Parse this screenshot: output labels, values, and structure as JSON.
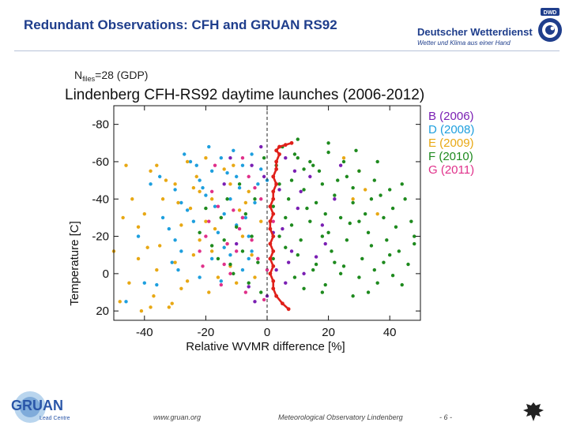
{
  "slide": {
    "title": "Redundant Observations: CFH and GRUAN RS92"
  },
  "header": {
    "org_name": "Deutscher Wetterdienst",
    "org_tagline": "Wetter und Klima aus einer Hand",
    "badge_text": "DWD"
  },
  "footer": {
    "logo_text": "GRUAN",
    "logo_subtext": "Lead Centre",
    "url": "www.gruan.org",
    "institution": "Meteorological Observatory Lindenberg",
    "page_number": "- 6 -"
  },
  "chart_data": {
    "type": "scatter",
    "title": "Lindenberg CFH-RS92 daytime launches (2006-2012)",
    "note_prefix": "N",
    "note_subscript": "files",
    "note_suffix": "=28  (GDP)",
    "xlabel": "Relative WVMR difference [%]",
    "ylabel": "Temperature [C]",
    "xlim": [
      -50,
      50
    ],
    "ylim": [
      25,
      -90
    ],
    "xticks": [
      -40,
      -20,
      0,
      20,
      40
    ],
    "yticks": [
      -80,
      -60,
      -40,
      -20,
      0,
      20
    ],
    "zero_line": "dashed",
    "legend_position": "top-right",
    "series": [
      {
        "name": "B (2006)",
        "color": "#7a1fb3",
        "points": [
          [
            2,
            -22
          ],
          [
            -3,
            -8
          ],
          [
            6,
            5
          ],
          [
            10,
            -35
          ],
          [
            -8,
            -30
          ],
          [
            14,
            -52
          ],
          [
            4,
            -45
          ],
          [
            -5,
            -58
          ],
          [
            18,
            -26
          ],
          [
            8,
            -12
          ],
          [
            0,
            12
          ],
          [
            -10,
            -16
          ],
          [
            12,
            0
          ],
          [
            -2,
            -68
          ],
          [
            6,
            -62
          ],
          [
            22,
            -40
          ],
          [
            -14,
            -48
          ],
          [
            3,
            -2
          ],
          [
            9,
            -55
          ],
          [
            16,
            -9
          ],
          [
            -6,
            7
          ],
          [
            1,
            -36
          ],
          [
            -12,
            -62
          ],
          [
            24,
            -58
          ],
          [
            5,
            -24
          ],
          [
            -4,
            15
          ],
          [
            11,
            -44
          ],
          [
            19,
            -16
          ],
          [
            -1,
            -52
          ],
          [
            7,
            -6
          ]
        ]
      },
      {
        "name": "D (2008)",
        "color": "#1e9fde",
        "points": [
          [
            -18,
            -55
          ],
          [
            -25,
            -60
          ],
          [
            -10,
            -52
          ],
          [
            -30,
            -45
          ],
          [
            -5,
            -64
          ],
          [
            -12,
            -40
          ],
          [
            -22,
            -50
          ],
          [
            -8,
            -58
          ],
          [
            -15,
            -62
          ],
          [
            -28,
            -38
          ],
          [
            -3,
            -48
          ],
          [
            -20,
            -42
          ],
          [
            -35,
            -52
          ],
          [
            -7,
            -30
          ],
          [
            -14,
            -32
          ],
          [
            -24,
            -28
          ],
          [
            -16,
            -22
          ],
          [
            -6,
            -20
          ],
          [
            -30,
            -18
          ],
          [
            -40,
            5
          ],
          [
            -36,
            6
          ],
          [
            -28,
            -12
          ],
          [
            -18,
            -8
          ],
          [
            -12,
            -10
          ],
          [
            -22,
            2
          ],
          [
            -8,
            -2
          ],
          [
            -46,
            15
          ],
          [
            -32,
            -24
          ],
          [
            -26,
            -34
          ],
          [
            -4,
            -38
          ],
          [
            -11,
            -66
          ],
          [
            -19,
            -68
          ],
          [
            -2,
            -56
          ],
          [
            -9,
            -46
          ],
          [
            -23,
            -58
          ],
          [
            -38,
            -48
          ],
          [
            -14,
            -14
          ],
          [
            -31,
            -6
          ],
          [
            -17,
            -36
          ],
          [
            -5,
            -12
          ],
          [
            0,
            -50
          ],
          [
            -13,
            -54
          ],
          [
            -27,
            -64
          ],
          [
            -21,
            -46
          ],
          [
            -10,
            -26
          ],
          [
            -34,
            -30
          ],
          [
            -6,
            -8
          ],
          [
            -15,
            4
          ],
          [
            -29,
            -2
          ],
          [
            -42,
            -20
          ]
        ]
      },
      {
        "name": "E (2009)",
        "color": "#e8a814",
        "points": [
          [
            -48,
            15
          ],
          [
            -38,
            18
          ],
          [
            -42,
            -8
          ],
          [
            -45,
            5
          ],
          [
            -36,
            -2
          ],
          [
            -40,
            -32
          ],
          [
            -34,
            -40
          ],
          [
            -46,
            -58
          ],
          [
            -38,
            -55
          ],
          [
            -30,
            -48
          ],
          [
            -42,
            -25
          ],
          [
            -35,
            -15
          ],
          [
            -28,
            8
          ],
          [
            -32,
            18
          ],
          [
            -25,
            -35
          ],
          [
            -20,
            -62
          ],
          [
            -26,
            -60
          ],
          [
            -18,
            -40
          ],
          [
            -22,
            -18
          ],
          [
            -15,
            -30
          ],
          [
            -12,
            -48
          ],
          [
            -28,
            -26
          ],
          [
            -8,
            -20
          ],
          [
            -10,
            5
          ],
          [
            -5,
            -10
          ],
          [
            -16,
            2
          ],
          [
            -24,
            -10
          ],
          [
            -44,
            -40
          ],
          [
            -50,
            -12
          ],
          [
            -36,
            -58
          ],
          [
            -20,
            -28
          ],
          [
            -30,
            -6
          ],
          [
            -14,
            -56
          ],
          [
            -6,
            -44
          ],
          [
            -18,
            -12
          ],
          [
            -26,
            4
          ],
          [
            -12,
            -4
          ],
          [
            -33,
            -50
          ],
          [
            -22,
            -44
          ],
          [
            -39,
            -14
          ],
          [
            -9,
            -34
          ],
          [
            -17,
            -24
          ],
          [
            -4,
            2
          ],
          [
            -2,
            -28
          ],
          [
            -29,
            -38
          ],
          [
            -47,
            -30
          ],
          [
            -11,
            -58
          ],
          [
            -24,
            -46
          ],
          [
            -37,
            12
          ],
          [
            -41,
            20
          ],
          [
            32,
            -45
          ],
          [
            28,
            -40
          ],
          [
            36,
            -32
          ],
          [
            30,
            -55
          ],
          [
            25,
            -62
          ],
          [
            -31,
            16
          ],
          [
            -19,
            10
          ],
          [
            -13,
            -16
          ],
          [
            -23,
            -52
          ],
          [
            -7,
            -38
          ]
        ]
      },
      {
        "name": "F (2010)",
        "color": "#1e8a1e",
        "points": [
          [
            5,
            -68
          ],
          [
            10,
            -62
          ],
          [
            15,
            -58
          ],
          [
            20,
            -65
          ],
          [
            25,
            -60
          ],
          [
            30,
            -55
          ],
          [
            35,
            -50
          ],
          [
            40,
            -45
          ],
          [
            45,
            -40
          ],
          [
            8,
            -50
          ],
          [
            12,
            -45
          ],
          [
            18,
            -48
          ],
          [
            22,
            -42
          ],
          [
            28,
            -38
          ],
          [
            32,
            -32
          ],
          [
            38,
            -30
          ],
          [
            42,
            -25
          ],
          [
            48,
            -20
          ],
          [
            6,
            -30
          ],
          [
            14,
            -28
          ],
          [
            20,
            -22
          ],
          [
            26,
            -18
          ],
          [
            34,
            -15
          ],
          [
            40,
            -10
          ],
          [
            46,
            -5
          ],
          [
            10,
            -10
          ],
          [
            16,
            -5
          ],
          [
            24,
            0
          ],
          [
            30,
            2
          ],
          [
            36,
            5
          ],
          [
            44,
            6
          ],
          [
            12,
            8
          ],
          [
            18,
            10
          ],
          [
            28,
            12
          ],
          [
            -5,
            -20
          ],
          [
            -10,
            -25
          ],
          [
            -15,
            -30
          ],
          [
            -8,
            -12
          ],
          [
            -12,
            -5
          ],
          [
            -18,
            -15
          ],
          [
            -22,
            -22
          ],
          [
            -4,
            -40
          ],
          [
            -6,
            5
          ],
          [
            -2,
            10
          ],
          [
            3,
            -58
          ],
          [
            9,
            -64
          ],
          [
            17,
            -55
          ],
          [
            23,
            -50
          ],
          [
            29,
            -66
          ],
          [
            37,
            -42
          ],
          [
            41,
            -35
          ],
          [
            47,
            -28
          ],
          [
            7,
            -40
          ],
          [
            13,
            -35
          ],
          [
            19,
            -32
          ],
          [
            27,
            -27
          ],
          [
            33,
            -22
          ],
          [
            39,
            -18
          ],
          [
            43,
            -12
          ],
          [
            4,
            -20
          ],
          [
            11,
            -18
          ],
          [
            21,
            -12
          ],
          [
            31,
            -8
          ],
          [
            15,
            -2
          ],
          [
            25,
            -4
          ],
          [
            35,
            -2
          ],
          [
            41,
            1
          ],
          [
            9,
            2
          ],
          [
            19,
            6
          ],
          [
            33,
            10
          ],
          [
            -3,
            -6
          ],
          [
            -7,
            -32
          ],
          [
            -13,
            -40
          ],
          [
            -16,
            -8
          ],
          [
            -20,
            -35
          ],
          [
            -9,
            -48
          ],
          [
            2,
            -36
          ],
          [
            8,
            -26
          ],
          [
            16,
            -38
          ],
          [
            24,
            -30
          ],
          [
            14,
            -60
          ],
          [
            26,
            -52
          ],
          [
            36,
            -60
          ],
          [
            44,
            -48
          ],
          [
            -1,
            -62
          ],
          [
            6,
            -14
          ],
          [
            22,
            -6
          ],
          [
            38,
            -6
          ],
          [
            48,
            -16
          ],
          [
            12,
            -56
          ],
          [
            28,
            -46
          ],
          [
            34,
            -40
          ],
          [
            20,
            -70
          ],
          [
            10,
            -72
          ],
          [
            4,
            -48
          ],
          [
            18,
            -20
          ],
          [
            30,
            -28
          ],
          [
            -11,
            0
          ],
          [
            -14,
            -18
          ],
          [
            2,
            -8
          ]
        ]
      },
      {
        "name": "G (2011)",
        "color": "#e0308a",
        "points": [
          [
            -14,
            -5
          ],
          [
            -10,
            -12
          ],
          [
            -20,
            -20
          ],
          [
            -8,
            -30
          ],
          [
            -5,
            -18
          ],
          [
            -16,
            -36
          ],
          [
            -3,
            -8
          ],
          [
            -12,
            0
          ],
          [
            -18,
            -44
          ],
          [
            -6,
            -52
          ],
          [
            -22,
            -12
          ],
          [
            -9,
            -24
          ],
          [
            0,
            -2
          ],
          [
            -2,
            -40
          ],
          [
            -15,
            6
          ],
          [
            -7,
            10
          ],
          [
            -11,
            -34
          ],
          [
            -19,
            -28
          ],
          [
            -4,
            -46
          ],
          [
            -13,
            -16
          ],
          [
            2,
            -28
          ],
          [
            -17,
            -58
          ],
          [
            -8,
            -62
          ],
          [
            -21,
            -4
          ],
          [
            -1,
            14
          ]
        ]
      }
    ],
    "mean_profile": {
      "color": "#e0201a",
      "points": [
        [
          8,
          -70
        ],
        [
          6,
          -69
        ],
        [
          4,
          -68
        ],
        [
          3,
          -66
        ],
        [
          4,
          -64
        ],
        [
          3,
          -60
        ],
        [
          3,
          -56
        ],
        [
          2,
          -52
        ],
        [
          3,
          -48
        ],
        [
          2,
          -44
        ],
        [
          2,
          -40
        ],
        [
          1,
          -36
        ],
        [
          2,
          -32
        ],
        [
          1,
          -28
        ],
        [
          1,
          -24
        ],
        [
          2,
          -20
        ],
        [
          1,
          -16
        ],
        [
          2,
          -12
        ],
        [
          1,
          -8
        ],
        [
          2,
          -4
        ],
        [
          1,
          0
        ],
        [
          2,
          4
        ],
        [
          2,
          8
        ],
        [
          3,
          12
        ],
        [
          5,
          16
        ],
        [
          7,
          19
        ]
      ]
    }
  }
}
